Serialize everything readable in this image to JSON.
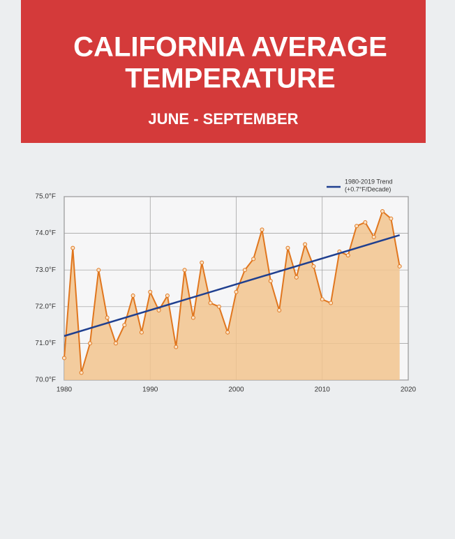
{
  "chart_data": {
    "type": "line",
    "title": "CALIFORNIA AVERAGE TEMPERATURE",
    "subtitle": "JUNE - SEPTEMBER",
    "x": [
      1980,
      1981,
      1982,
      1983,
      1984,
      1985,
      1986,
      1987,
      1988,
      1989,
      1990,
      1991,
      1992,
      1993,
      1994,
      1995,
      1996,
      1997,
      1998,
      1999,
      2000,
      2001,
      2002,
      2003,
      2004,
      2005,
      2006,
      2007,
      2008,
      2009,
      2010,
      2011,
      2012,
      2013,
      2014,
      2015,
      2016,
      2017,
      2018,
      2019
    ],
    "series": [
      {
        "color": "#e0761e",
        "fill": "#f2c48e",
        "values": [
          70.6,
          73.6,
          70.2,
          71.0,
          73.0,
          71.7,
          71.0,
          71.5,
          72.3,
          71.3,
          72.4,
          71.9,
          72.3,
          70.9,
          73.0,
          71.7,
          73.2,
          72.1,
          72.0,
          71.3,
          72.4,
          73.0,
          73.3,
          74.1,
          72.7,
          71.9,
          73.6,
          72.8,
          73.7,
          73.1,
          72.2,
          72.1,
          73.5,
          73.4,
          74.2,
          74.3,
          73.9,
          74.6,
          74.4,
          73.1
        ]
      },
      {
        "name": "1980-2019 Trend",
        "color": "#1f3f8f",
        "x": [
          1980,
          2019
        ],
        "values": [
          71.2,
          73.95
        ]
      }
    ],
    "legend_note": "(+0.7°F/Decade)",
    "xlim": [
      1980,
      2020
    ],
    "xticks": [
      1980,
      1990,
      2000,
      2010,
      2020
    ],
    "ylim": [
      70,
      75
    ],
    "yticks": [
      {
        "value": 70,
        "label": "70.0°F"
      },
      {
        "value": 71,
        "label": "71.0°F"
      },
      {
        "value": 72,
        "label": "72.0°F"
      },
      {
        "value": 73,
        "label": "73.0°F"
      },
      {
        "value": 74,
        "label": "74.0°F"
      },
      {
        "value": 75,
        "label": "75.0°F"
      }
    ],
    "grid": true,
    "legend": "upper right"
  }
}
